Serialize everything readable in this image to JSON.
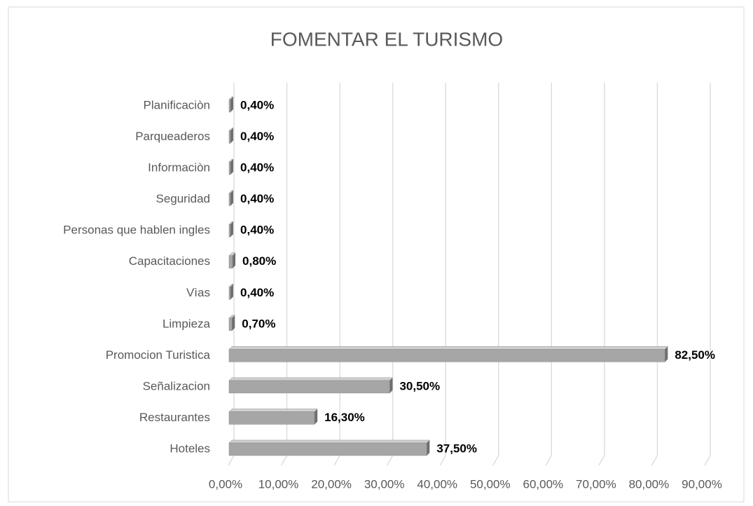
{
  "chart_data": {
    "type": "bar",
    "orientation": "horizontal",
    "title": "FOMENTAR EL TURISMO",
    "categories": [
      "Planificaciòn",
      "Parqueaderos",
      "Informaciòn",
      "Seguridad",
      "Personas que hablen ingles",
      "Capacitaciones",
      "Vìas",
      "Limpieza",
      "Promocion Turistica",
      "Señalizacion",
      "Restaurantes",
      "Hoteles"
    ],
    "values": [
      0.4,
      0.4,
      0.4,
      0.4,
      0.4,
      0.8,
      0.4,
      0.7,
      82.5,
      30.5,
      16.3,
      37.5
    ],
    "value_labels": [
      "0,40%",
      "0,40%",
      "0,40%",
      "0,40%",
      "0,40%",
      "0,80%",
      "0,40%",
      "0,70%",
      "82,50%",
      "30,50%",
      "16,30%",
      "37,50%"
    ],
    "color": "#a6a6a6",
    "xlim": [
      0,
      90
    ],
    "xticks": [
      {
        "value": 0,
        "label": "0,00%"
      },
      {
        "value": 10,
        "label": "10,00%"
      },
      {
        "value": 20,
        "label": "20,00%"
      },
      {
        "value": 30,
        "label": "30,00%"
      },
      {
        "value": 40,
        "label": "40,00%"
      },
      {
        "value": 50,
        "label": "50,00%"
      },
      {
        "value": 60,
        "label": "60,00%"
      },
      {
        "value": 70,
        "label": "70,00%"
      },
      {
        "value": 80,
        "label": "80,00%"
      },
      {
        "value": 90,
        "label": "90,00%"
      }
    ],
    "grid": true
  }
}
